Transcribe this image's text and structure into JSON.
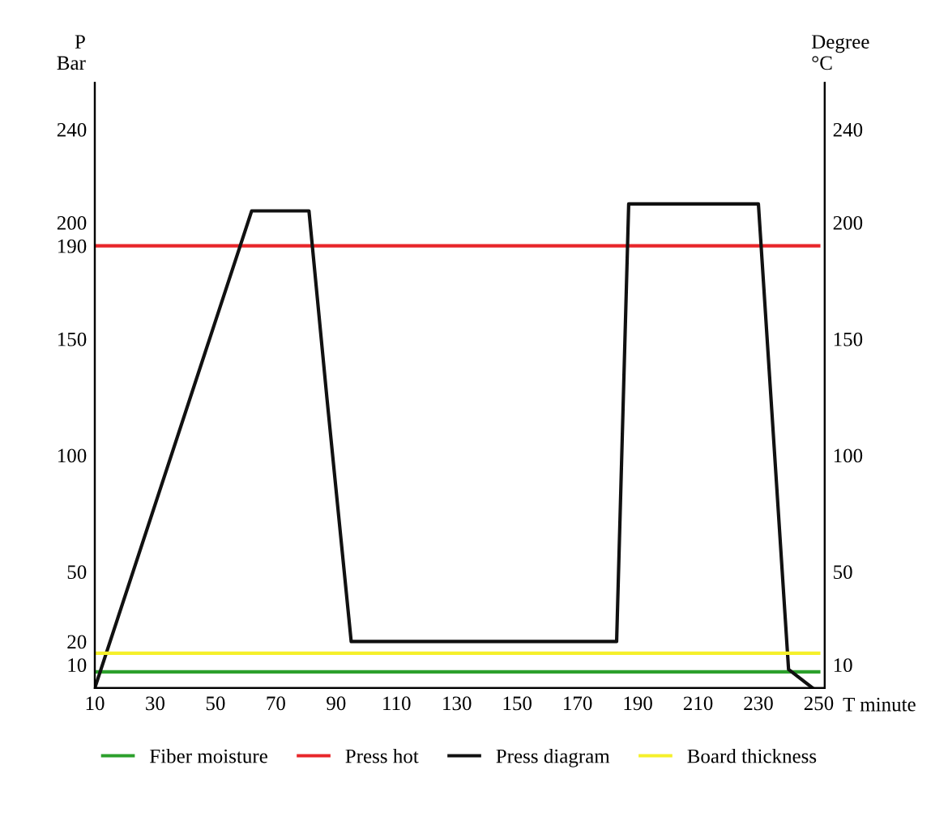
{
  "chart_data": {
    "type": "line",
    "xlabel": "T minute",
    "ylabel": "P\nBar",
    "y2label": "Degree\n°C",
    "xlim": [
      10,
      252
    ],
    "xticks": [
      10,
      30,
      50,
      70,
      90,
      110,
      130,
      150,
      170,
      190,
      210,
      230,
      250
    ],
    "ylim": [
      0,
      260
    ],
    "yticks": [
      10,
      20,
      50,
      100,
      150,
      190,
      200,
      240
    ],
    "y2lim": [
      0,
      260
    ],
    "y2ticks": [
      10,
      50,
      100,
      150,
      200,
      240
    ],
    "grid": false,
    "legend": "bottom",
    "marker": "none",
    "line_style": "solid",
    "series": [
      {
        "name": "Fiber moisture",
        "color": "#2ca02c",
        "x": [
          10,
          250
        ],
        "values": [
          7,
          7
        ]
      },
      {
        "name": "Press hot",
        "color": "#e8262a",
        "x": [
          10,
          250
        ],
        "values": [
          190,
          190
        ]
      },
      {
        "name": "Press diagram",
        "color": "#111111",
        "x": [
          10,
          62,
          81,
          87,
          95,
          183,
          187,
          230,
          240,
          248
        ],
        "values": [
          0,
          205,
          205,
          124,
          20,
          20,
          208,
          208,
          8,
          0
        ]
      },
      {
        "name": "Board thickness",
        "color": "#f5f02a",
        "x": [
          10,
          250
        ],
        "values": [
          15,
          15
        ]
      }
    ]
  }
}
